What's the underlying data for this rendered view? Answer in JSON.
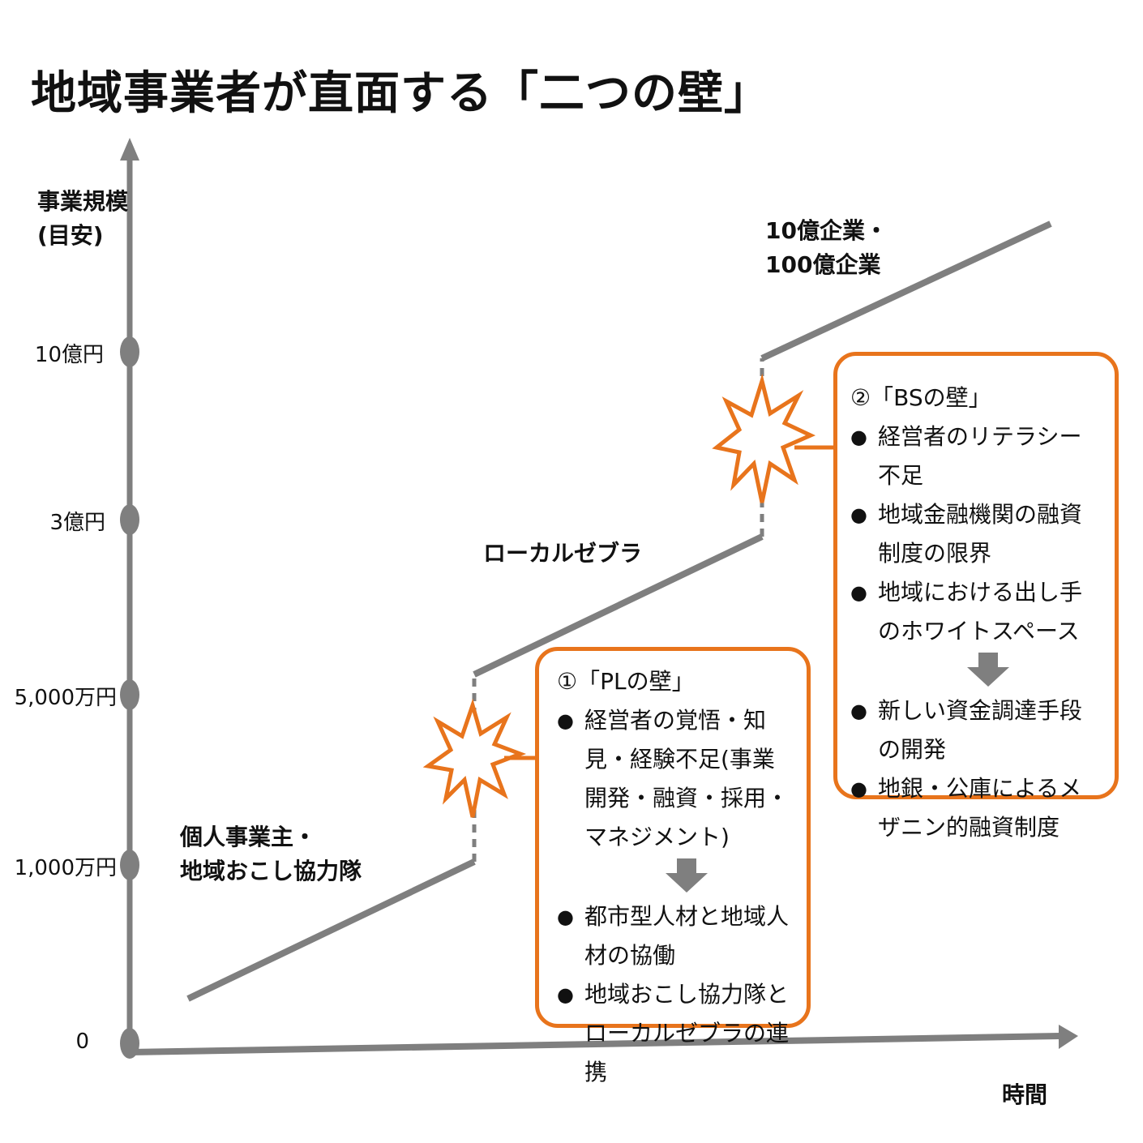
{
  "title": "地域事業者が直面する「二つの壁」",
  "y_axis": {
    "label_line1": "事業規模",
    "label_line2": "(目安)"
  },
  "x_axis": {
    "label": "時間"
  },
  "ticks": [
    "0",
    "1,000万円",
    "5,000万円",
    "3億円",
    "10億円"
  ],
  "stages": [
    {
      "line1": "個人事業主・",
      "line2": "地域おこし協力隊"
    },
    {
      "line1": "ローカルゼブラ",
      "line2": ""
    },
    {
      "line1": "10億企業・",
      "line2": "100億企業"
    }
  ],
  "wall1": {
    "title": "①「PLの壁」",
    "problems": [
      "経営者の覚悟・知見・経験不足(事業開発・融資・採用・マネジメント)"
    ],
    "solutions": [
      "都市型人材と地域人材の協働",
      "地域おこし協力隊とローカルゼブラの連携"
    ]
  },
  "wall2": {
    "title": "②「BSの壁」",
    "problems": [
      "経営者のリテラシー不足",
      "地域金融機関の融資制度の限界",
      "地域における出し手のホワイトスペース"
    ],
    "solutions": [
      "新しい資金調達手段の開発",
      "地銀・公庫によるメザニン的融資制度"
    ]
  },
  "colors": {
    "accent": "#E8741C",
    "line": "#7F7F7F",
    "text": "#111111"
  },
  "icons": [
    "explosion-icon",
    "down-arrow-icon"
  ]
}
